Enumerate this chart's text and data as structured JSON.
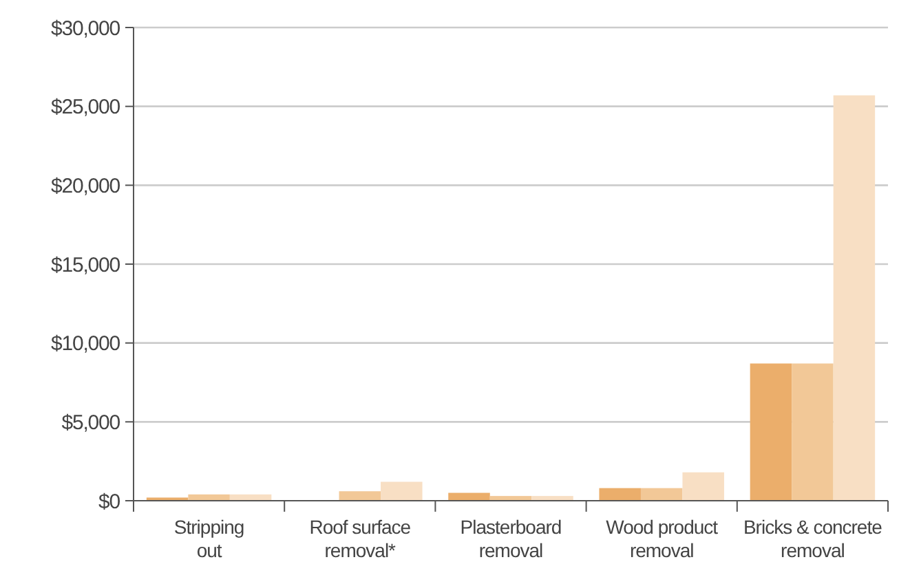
{
  "chart_data": {
    "type": "bar",
    "categories": [
      "Stripping out",
      "Roof surface removal*",
      "Plasterboard removal",
      "Wood product removal",
      "Bricks & concrete removal"
    ],
    "series": [
      {
        "color": "#ebae6b",
        "values": [
          200,
          0,
          500,
          800,
          8700
        ]
      },
      {
        "color": "#f2c897",
        "values": [
          400,
          600,
          300,
          800,
          8700
        ]
      },
      {
        "color": "#f8dfc4",
        "values": [
          400,
          1200,
          300,
          1800,
          25700
        ]
      }
    ],
    "ylim": [
      0,
      30000
    ],
    "yticks": [
      {
        "value": 0,
        "label": "$0"
      },
      {
        "value": 5000,
        "label": "$5,000"
      },
      {
        "value": 10000,
        "label": "$10,000"
      },
      {
        "value": 15000,
        "label": "$15,000"
      },
      {
        "value": 20000,
        "label": "$20,000"
      },
      {
        "value": 25000,
        "label": "$25,000"
      },
      {
        "value": 30000,
        "label": "$30,000"
      }
    ],
    "grid": "y"
  }
}
